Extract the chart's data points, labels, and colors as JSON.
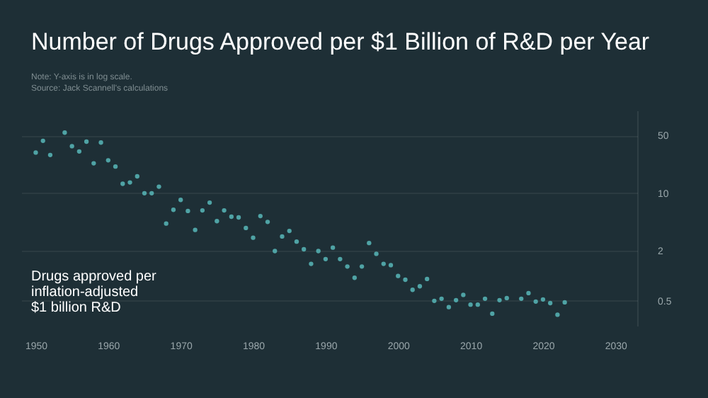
{
  "chart_data": {
    "type": "scatter",
    "title": "Number of Drugs Approved per $1 Billion of R&D per Year",
    "subtitle": [
      "Note: Y-axis is in log scale.",
      "Source: Jack Scannell's calculations"
    ],
    "ylabel": "Drugs approved per\ninflation-adjusted\n$1 billion R&D",
    "x": [
      1950,
      1951,
      1952,
      1954,
      1955,
      1956,
      1957,
      1958,
      1959,
      1960,
      1961,
      1962,
      1963,
      1964,
      1965,
      1966,
      1967,
      1968,
      1969,
      1970,
      1971,
      1972,
      1973,
      1974,
      1975,
      1976,
      1977,
      1978,
      1979,
      1980,
      1981,
      1982,
      1983,
      1984,
      1985,
      1986,
      1987,
      1988,
      1989,
      1990,
      1991,
      1992,
      1993,
      1994,
      1995,
      1996,
      1997,
      1998,
      1999,
      2000,
      2001,
      2002,
      2003,
      2004,
      2005,
      2006,
      2007,
      2008,
      2009,
      2010,
      2011,
      2012,
      2013,
      2014,
      2015,
      2017,
      2018,
      2019,
      2020,
      2021,
      2022,
      2023
    ],
    "series": [
      {
        "color": "#4fa3a5",
        "values": [
          31,
          43,
          29,
          54,
          37,
          32,
          42,
          23,
          41,
          25,
          21,
          13,
          13.5,
          16,
          10,
          10,
          12,
          4.3,
          6.3,
          8.3,
          6.1,
          3.6,
          6.2,
          7.7,
          4.6,
          6.2,
          5.2,
          5.1,
          3.8,
          2.9,
          5.3,
          4.5,
          2.0,
          3.0,
          3.5,
          2.6,
          2.1,
          1.4,
          2.0,
          1.6,
          2.2,
          1.6,
          1.3,
          0.95,
          1.3,
          2.5,
          1.85,
          1.4,
          1.35,
          1.0,
          0.9,
          0.68,
          0.75,
          0.92,
          0.5,
          0.53,
          0.42,
          0.51,
          0.59,
          0.45,
          0.45,
          0.53,
          0.35,
          0.51,
          0.54,
          0.53,
          0.62,
          0.49,
          0.52,
          0.47,
          0.34,
          0.48
        ]
      }
    ],
    "xlim": [
      1948,
      2033
    ],
    "xticks": [
      1950,
      1960,
      1970,
      1980,
      1990,
      2000,
      2010,
      2020,
      2030
    ],
    "ylim": [
      0.25,
      100
    ],
    "yticks": [
      0.5,
      2,
      10,
      50
    ],
    "log": "y",
    "grid": "y",
    "marker": "circle"
  }
}
